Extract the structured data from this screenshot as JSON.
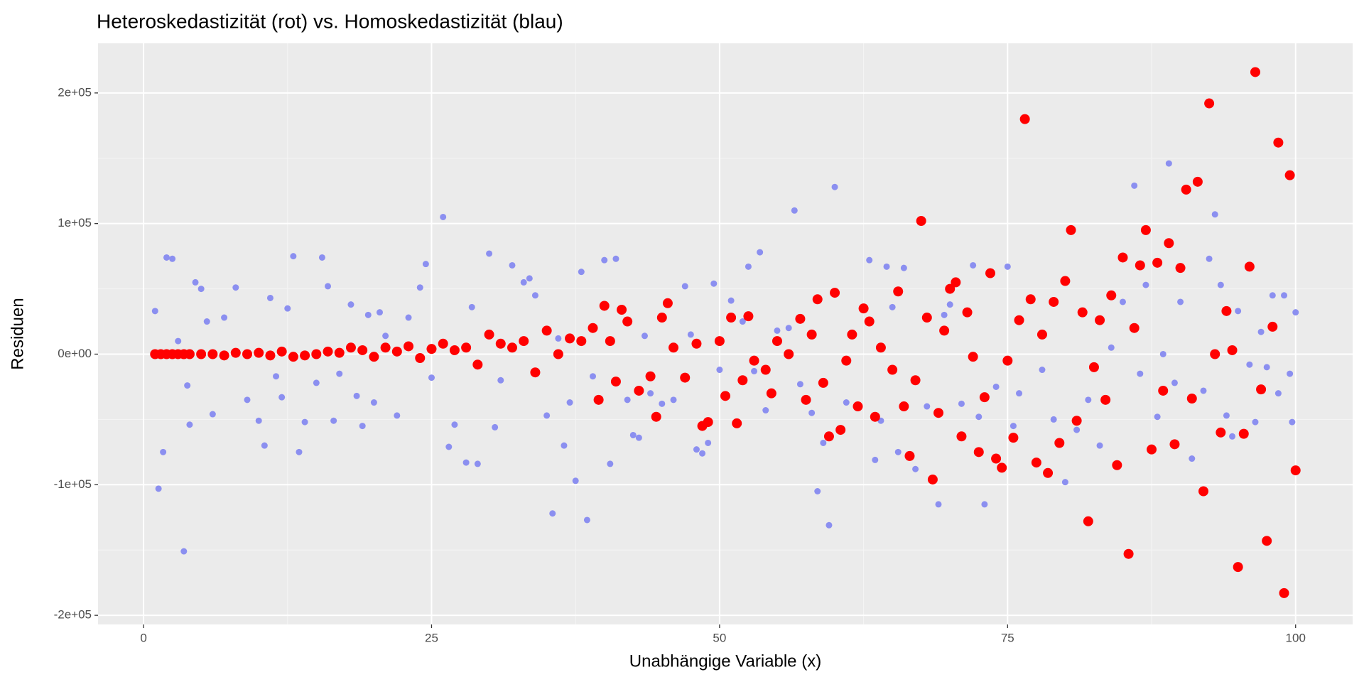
{
  "chart_data": {
    "type": "scatter",
    "title": "Heteroskedastizität (rot) vs. Homoskedastizität (blau)",
    "x_label": "Unabhängige Variable (x)",
    "y_label": "Residuen",
    "xlim": [
      -3.95,
      104.95
    ],
    "ylim": [
      -207000,
      238000
    ],
    "xticks": [
      0,
      25,
      50,
      75,
      100
    ],
    "yticks": [
      {
        "value": -200000,
        "label": "-2e+05"
      },
      {
        "value": -100000,
        "label": "-1e+05"
      },
      {
        "value": 0,
        "label": "0e+00"
      },
      {
        "value": 100000,
        "label": "1e+05"
      },
      {
        "value": 200000,
        "label": "2e+05"
      }
    ],
    "grid": true,
    "series": [
      {
        "color": "#8b8ff0",
        "x": [
          1,
          1.3,
          1.7,
          2,
          2.5,
          3,
          3.5,
          3.8,
          4,
          4.5,
          5,
          5.5,
          6,
          7,
          8,
          9,
          10,
          10.5,
          11,
          11.5,
          12,
          12.5,
          13,
          13.5,
          14,
          15,
          15.5,
          16,
          16.5,
          17,
          18,
          18.5,
          19,
          19.5,
          20,
          20.5,
          21,
          22,
          23,
          24,
          24.5,
          25,
          26,
          26.5,
          27,
          28,
          28.5,
          29,
          30,
          30.5,
          31,
          32,
          33,
          33.5,
          34,
          35,
          35.5,
          36,
          36.5,
          37,
          37.5,
          38,
          38.5,
          39,
          40,
          40.5,
          41,
          42,
          42.5,
          43,
          43.5,
          44,
          45,
          46,
          47,
          47.5,
          48,
          48.5,
          49,
          49.5,
          50,
          51,
          52,
          52.5,
          53,
          53.5,
          54,
          55,
          56,
          56.5,
          57,
          58,
          58.5,
          59,
          59.5,
          60,
          61,
          62,
          63,
          63.5,
          64,
          64.5,
          65,
          65.5,
          66,
          67,
          68,
          69,
          69.5,
          70,
          71,
          72,
          72.5,
          73,
          74,
          75,
          75.5,
          76,
          77,
          78,
          79,
          80,
          81,
          82,
          83,
          84,
          85,
          86,
          86.5,
          87,
          88,
          88.5,
          89,
          89.5,
          90,
          91,
          92,
          92.5,
          93,
          93.5,
          94,
          94.5,
          95,
          96,
          96.5,
          97,
          97.5,
          98,
          98.5,
          99,
          99.5,
          99.7,
          100
        ],
        "values": [
          33000,
          -103000,
          -75000,
          74000,
          73000,
          10000,
          -151000,
          -24000,
          -54000,
          55000,
          50000,
          25000,
          -46000,
          28000,
          51000,
          -35000,
          -51000,
          -70000,
          43000,
          -17000,
          -33000,
          35000,
          75000,
          -75000,
          -52000,
          -22000,
          74000,
          52000,
          -51000,
          -15000,
          38000,
          -32000,
          -55000,
          30000,
          -37000,
          32000,
          14000,
          -47000,
          28000,
          51000,
          69000,
          -18000,
          105000,
          -71000,
          -54000,
          -83000,
          36000,
          -84000,
          77000,
          -56000,
          -20000,
          68000,
          55000,
          58000,
          45000,
          -47000,
          -122000,
          12000,
          -70000,
          -37000,
          -97000,
          63000,
          -127000,
          -17000,
          72000,
          -84000,
          73000,
          -35000,
          -62000,
          -64000,
          14000,
          -30000,
          -38000,
          -35000,
          52000,
          15000,
          -73000,
          -76000,
          -68000,
          54000,
          -12000,
          41000,
          25000,
          67000,
          -13000,
          78000,
          -43000,
          18000,
          20000,
          110000,
          -23000,
          -45000,
          -105000,
          -68000,
          -131000,
          128000,
          -37000,
          -41000,
          72000,
          -81000,
          -51000,
          67000,
          36000,
          -75000,
          66000,
          -88000,
          -40000,
          -115000,
          30000,
          38000,
          -38000,
          68000,
          -48000,
          -115000,
          -25000,
          67000,
          -55000,
          -30000,
          43000,
          -12000,
          -50000,
          -98000,
          -58000,
          -35000,
          -70000,
          5000,
          40000,
          129000,
          -15000,
          53000,
          -48000,
          0,
          146000,
          -22000,
          40000,
          -80000,
          -28000,
          73000,
          107000,
          53000,
          -47000,
          -63000,
          33000,
          -8000,
          -52000,
          17000,
          -10000,
          45000,
          -30000,
          45000,
          -15000,
          -52000,
          32000
        ]
      },
      {
        "color": "#ff0000",
        "x": [
          1,
          1.5,
          2,
          2.5,
          3,
          3.5,
          4,
          5,
          6,
          7,
          8,
          9,
          10,
          11,
          12,
          13,
          14,
          15,
          16,
          17,
          18,
          19,
          20,
          21,
          22,
          23,
          24,
          25,
          26,
          27,
          28,
          29,
          30,
          31,
          32,
          33,
          34,
          35,
          36,
          37,
          38,
          39,
          39.5,
          40,
          40.5,
          41,
          41.5,
          42,
          43,
          44,
          44.5,
          45,
          45.5,
          46,
          47,
          48,
          48.5,
          49,
          50,
          50.5,
          51,
          51.5,
          52,
          52.5,
          53,
          54,
          54.5,
          55,
          56,
          57,
          57.5,
          58,
          58.5,
          59,
          59.5,
          60,
          60.5,
          61,
          61.5,
          62,
          62.5,
          63,
          63.5,
          64,
          65,
          65.5,
          66,
          66.5,
          67,
          67.5,
          68,
          68.5,
          69,
          69.5,
          70,
          70.5,
          71,
          71.5,
          72,
          72.5,
          73,
          73.5,
          74,
          74.5,
          75,
          75.5,
          76,
          76.5,
          77,
          77.5,
          78,
          78.5,
          79,
          79.5,
          80,
          80.5,
          81,
          81.5,
          82,
          82.5,
          83,
          83.5,
          84,
          84.5,
          85,
          85.5,
          86,
          86.5,
          87,
          87.5,
          88,
          88.5,
          89,
          89.5,
          90,
          90.5,
          91,
          91.5,
          92,
          92.5,
          93,
          93.5,
          94,
          94.5,
          95,
          95.5,
          96,
          96.5,
          97,
          97.5,
          98,
          98.5,
          99,
          99.5,
          100
        ],
        "values": [
          0,
          0,
          0,
          0,
          0,
          0,
          0,
          0,
          0,
          -1000,
          1000,
          0,
          1000,
          -1000,
          2000,
          -2000,
          -1000,
          0,
          2000,
          1000,
          5000,
          3000,
          -2000,
          5000,
          2000,
          6000,
          -3000,
          4000,
          8000,
          3000,
          5000,
          -8000,
          15000,
          8000,
          5000,
          10000,
          -14000,
          18000,
          0,
          12000,
          10000,
          20000,
          -35000,
          37000,
          10000,
          -21000,
          34000,
          25000,
          -28000,
          -17000,
          -48000,
          28000,
          39000,
          5000,
          -18000,
          8000,
          -55000,
          -52000,
          10000,
          -32000,
          28000,
          -53000,
          -20000,
          29000,
          -5000,
          -12000,
          -30000,
          10000,
          0,
          27000,
          -35000,
          15000,
          42000,
          -22000,
          -63000,
          47000,
          -58000,
          -5000,
          15000,
          -40000,
          35000,
          25000,
          -48000,
          5000,
          -12000,
          48000,
          -40000,
          -78000,
          -20000,
          102000,
          28000,
          -96000,
          -45000,
          18000,
          50000,
          55000,
          -63000,
          32000,
          -2000,
          -75000,
          -33000,
          62000,
          -80000,
          -87000,
          -5000,
          -64000,
          26000,
          180000,
          42000,
          -83000,
          15000,
          -91000,
          40000,
          -68000,
          56000,
          95000,
          -51000,
          32000,
          -128000,
          -10000,
          26000,
          -35000,
          45000,
          -85000,
          74000,
          -153000,
          20000,
          68000,
          95000,
          -73000,
          70000,
          -28000,
          85000,
          -69000,
          66000,
          126000,
          -34000,
          132000,
          -105000,
          192000,
          0,
          -60000,
          33000,
          3000,
          -163000,
          -61000,
          67000,
          216000,
          -27000,
          -143000,
          21000,
          162000,
          -183000,
          137000,
          -89000
        ]
      }
    ]
  }
}
